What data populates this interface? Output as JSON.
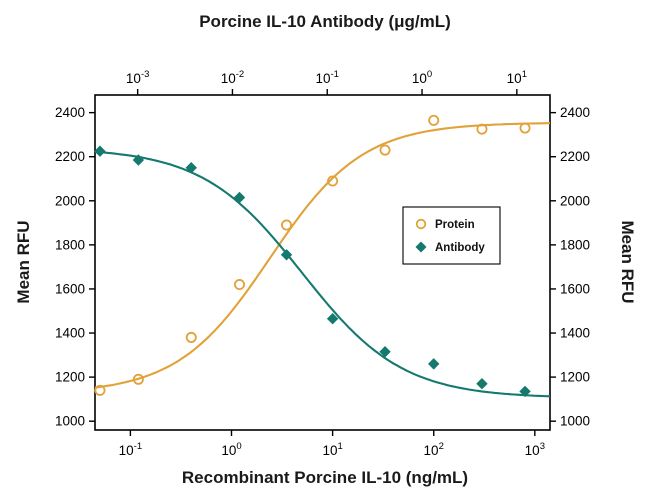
{
  "figure": {
    "title_top": "Porcine IL-10 Antibody (μg/mL)",
    "xlabel_bottom": "Recombinant Porcine IL-10 (ng/mL)",
    "ylabel_left": "Mean RFU",
    "ylabel_right": "Mean RFU"
  },
  "colors": {
    "protein": "#E2A23A",
    "antibody": "#15796E",
    "axis": "#000000",
    "title_text": "#1A1A1A",
    "background": "#FFFFFF"
  },
  "chart_data": {
    "type": "scatter",
    "subtype": "dose-response curves (log x, 4-parameter logistic fits)",
    "x_axis_bottom": {
      "label": "Recombinant Porcine IL-10 (ng/mL)",
      "scale": "log10",
      "tick_exponents": [
        -1,
        0,
        1,
        2,
        3
      ],
      "range_log10": [
        -1.35,
        3.15
      ]
    },
    "x_axis_top": {
      "label": "Porcine IL-10 Antibody (μg/mL)",
      "scale": "log10",
      "tick_exponents": [
        -3,
        -2,
        -1,
        0,
        1
      ],
      "range_log10": [
        -3.45,
        1.35
      ]
    },
    "y_axis": {
      "label": "Mean RFU",
      "ticks": [
        1000,
        1200,
        1400,
        1600,
        1800,
        2000,
        2200,
        2400
      ],
      "range": [
        960,
        2480
      ],
      "mirrored_right": true
    },
    "series": [
      {
        "name": "Protein",
        "marker": "open-circle",
        "color": "#E2A23A",
        "x": [
          0.05,
          0.12,
          0.4,
          1.2,
          3.5,
          10,
          33,
          100,
          300,
          800
        ],
        "y": [
          1140,
          1190,
          1380,
          1620,
          1890,
          2090,
          2230,
          2365,
          2325,
          2330
        ],
        "fit": {
          "direction": "increasing",
          "bottom": 1125,
          "top": 2355,
          "ec50": 2.4,
          "hill": 0.95
        }
      },
      {
        "name": "Antibody",
        "marker": "filled-diamond",
        "color": "#15796E",
        "x": [
          0.05,
          0.12,
          0.4,
          1.2,
          3.5,
          10,
          33,
          100,
          300,
          800
        ],
        "y": [
          2225,
          2185,
          2150,
          2015,
          1755,
          1465,
          1315,
          1260,
          1170,
          1135
        ],
        "fit": {
          "direction": "decreasing",
          "bottom": 1105,
          "top": 2240,
          "ec50": 5,
          "hill": 0.88
        }
      }
    ],
    "legend": {
      "position": "right-center-inside",
      "border": true,
      "entries": [
        {
          "label": "Protein",
          "marker": "open-circle",
          "color": "#E2A23A"
        },
        {
          "label": "Antibody",
          "marker": "filled-diamond",
          "color": "#15796E"
        }
      ]
    },
    "grid": false
  }
}
